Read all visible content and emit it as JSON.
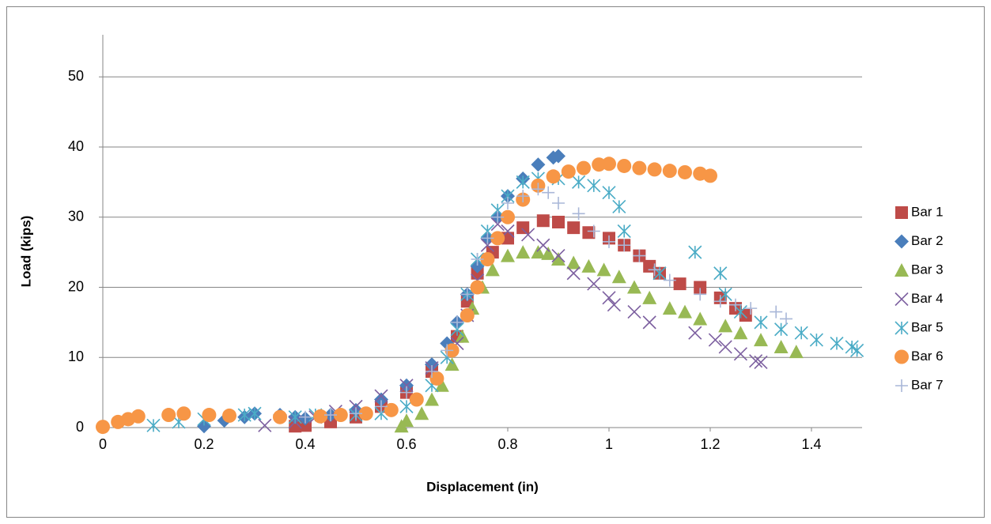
{
  "chart_data": {
    "type": "scatter",
    "x_label": "Displacement (in)",
    "y_label": "Load (kips)",
    "xlim": [
      0,
      1.5
    ],
    "xticks": [
      0,
      0.2,
      0.4,
      0.6,
      0.8,
      1,
      1.2,
      1.4
    ],
    "ylim": [
      0,
      56
    ],
    "yticks": [
      0,
      10,
      20,
      30,
      40,
      50
    ],
    "grid": true,
    "legend": "right",
    "series": [
      {
        "name": "Bar 1",
        "color": "#be4b48",
        "marker": "square",
        "x": [
          0.38,
          0.4,
          0.45,
          0.5,
          0.55,
          0.6,
          0.65,
          0.7,
          0.72,
          0.74,
          0.77,
          0.8,
          0.83,
          0.87,
          0.9,
          0.93,
          0.96,
          1.0,
          1.03,
          1.06,
          1.08,
          1.1,
          1.14,
          1.18,
          1.22,
          1.25,
          1.27
        ],
        "values": [
          0.2,
          0.3,
          0.8,
          1.5,
          3,
          5,
          8,
          13,
          18,
          22,
          25,
          27,
          28.5,
          29.5,
          29.3,
          28.5,
          27.8,
          27,
          26,
          24.5,
          23,
          22,
          20.5,
          20,
          18.5,
          17,
          16
        ]
      },
      {
        "name": "Bar 2",
        "color": "#4a7ebb",
        "marker": "diamond",
        "x": [
          0.2,
          0.24,
          0.28,
          0.3,
          0.35,
          0.38,
          0.4,
          0.45,
          0.5,
          0.55,
          0.6,
          0.65,
          0.68,
          0.7,
          0.72,
          0.74,
          0.76,
          0.78,
          0.8,
          0.83,
          0.86,
          0.89,
          0.9
        ],
        "values": [
          0.2,
          1,
          1.5,
          2,
          1.8,
          1.5,
          1.3,
          1.8,
          2.5,
          4,
          6,
          9,
          12,
          15,
          19,
          23,
          27,
          30,
          33,
          35.5,
          37.5,
          38.5,
          38.7
        ]
      },
      {
        "name": "Bar 3",
        "color": "#98b954",
        "marker": "triangle",
        "x": [
          0.59,
          0.6,
          0.63,
          0.65,
          0.67,
          0.69,
          0.71,
          0.73,
          0.75,
          0.77,
          0.8,
          0.83,
          0.86,
          0.88,
          0.9,
          0.93,
          0.96,
          0.99,
          1.02,
          1.05,
          1.08,
          1.12,
          1.15,
          1.18,
          1.23,
          1.26,
          1.3,
          1.34,
          1.37
        ],
        "values": [
          0.2,
          1,
          2,
          4,
          6,
          9,
          13,
          17,
          20,
          22.5,
          24.5,
          25,
          25,
          24.8,
          24,
          23.5,
          23,
          22.5,
          21.5,
          20,
          18.5,
          17,
          16.5,
          15.5,
          14.5,
          13.5,
          12.5,
          11.5,
          10.8
        ]
      },
      {
        "name": "Bar 4",
        "color": "#7d60a0",
        "marker": "x",
        "x": [
          0.32,
          0.38,
          0.42,
          0.46,
          0.5,
          0.55,
          0.6,
          0.65,
          0.7,
          0.72,
          0.74,
          0.76,
          0.78,
          0.8,
          0.84,
          0.87,
          0.9,
          0.93,
          0.97,
          1.0,
          1.01,
          1.05,
          1.08,
          1.17,
          1.21,
          1.23,
          1.26,
          1.29,
          1.3
        ],
        "values": [
          0.3,
          0.8,
          1.5,
          2.3,
          3,
          4.5,
          6,
          8.5,
          12,
          16,
          21,
          26,
          29,
          28,
          27.5,
          26,
          24.5,
          22,
          20.5,
          18.5,
          17.5,
          16.5,
          15,
          13.5,
          12.5,
          11.5,
          10.5,
          9.5,
          9.3
        ]
      },
      {
        "name": "Bar 5",
        "color": "#4bacc6",
        "marker": "asterisk",
        "x": [
          0.1,
          0.15,
          0.2,
          0.28,
          0.3,
          0.38,
          0.42,
          0.5,
          0.55,
          0.6,
          0.65,
          0.68,
          0.7,
          0.72,
          0.74,
          0.76,
          0.78,
          0.8,
          0.83,
          0.86,
          0.9,
          0.94,
          0.97,
          1.0,
          1.02,
          1.03,
          1.1,
          1.17,
          1.22,
          1.23,
          1.26,
          1.3,
          1.34,
          1.38,
          1.41,
          1.45,
          1.48,
          1.49
        ],
        "values": [
          0.3,
          0.8,
          1.2,
          1.8,
          2,
          1.5,
          1.8,
          1.8,
          2,
          3,
          6,
          10,
          14,
          19,
          24,
          28,
          31,
          33,
          35,
          35.5,
          35.5,
          35,
          34.5,
          33.5,
          31.5,
          28,
          22,
          25,
          22,
          19,
          16.5,
          15,
          14,
          13.5,
          12.5,
          12,
          11.5,
          11
        ]
      },
      {
        "name": "Bar 6",
        "color": "#f79646",
        "marker": "circle",
        "x": [
          0,
          0.03,
          0.05,
          0.07,
          0.13,
          0.16,
          0.21,
          0.25,
          0.35,
          0.43,
          0.47,
          0.52,
          0.57,
          0.62,
          0.66,
          0.69,
          0.72,
          0.74,
          0.76,
          0.78,
          0.8,
          0.83,
          0.86,
          0.89,
          0.92,
          0.95,
          0.98,
          1.0,
          1.03,
          1.06,
          1.09,
          1.12,
          1.15,
          1.18,
          1.2
        ],
        "values": [
          0.1,
          0.8,
          1.2,
          1.6,
          1.8,
          2,
          1.8,
          1.7,
          1.5,
          1.6,
          1.8,
          2,
          2.5,
          4,
          7,
          11,
          16,
          20,
          24,
          27,
          30,
          32.5,
          34.5,
          35.8,
          36.5,
          37,
          37.5,
          37.6,
          37.3,
          37,
          36.8,
          36.6,
          36.4,
          36.2,
          35.9
        ]
      },
      {
        "name": "Bar 7",
        "color": "#a9b7d8",
        "marker": "plus",
        "x": [
          0.4,
          0.45,
          0.5,
          0.55,
          0.6,
          0.65,
          0.68,
          0.7,
          0.72,
          0.74,
          0.76,
          0.78,
          0.8,
          0.83,
          0.86,
          0.88,
          0.9,
          0.94,
          0.97,
          1.0,
          1.03,
          1.06,
          1.09,
          1.12,
          1.18,
          1.22,
          1.25,
          1.28,
          1.33,
          1.35
        ],
        "values": [
          1.5,
          1.8,
          2,
          3,
          5,
          8,
          11,
          15,
          19,
          24,
          27,
          30,
          32,
          33,
          34,
          33.5,
          32,
          30.5,
          28,
          26.5,
          26,
          24.5,
          22.5,
          21,
          19,
          18,
          17.5,
          17,
          16.5,
          15.5
        ]
      }
    ]
  }
}
